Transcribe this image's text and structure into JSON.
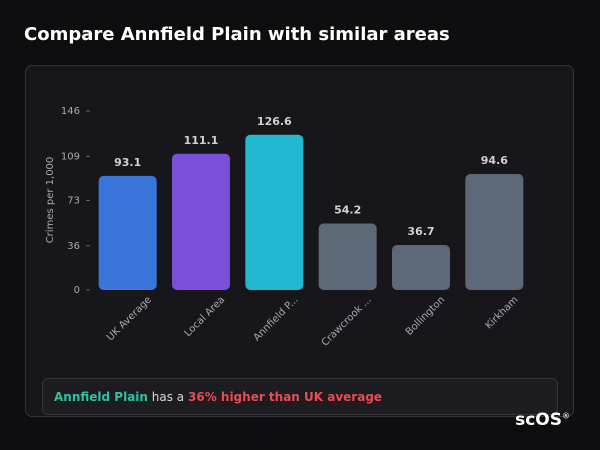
{
  "chart_data": {
    "type": "bar",
    "title": "Compare Annfield Plain with similar areas",
    "y_label": "Crimes per 1,000",
    "categories": [
      "UK Average",
      "Local Area",
      "Annfield P...",
      "Crawcrook ...",
      "Bollington",
      "Kirkham"
    ],
    "values": [
      93.1,
      111.1,
      126.6,
      54.2,
      36.7,
      94.6
    ],
    "colors": [
      "#3a76d9",
      "#7b4fd8",
      "#22b8cf",
      "#5d6878",
      "#5d6878",
      "#5d6878"
    ],
    "ylim": [
      0,
      146
    ],
    "yticks": [
      0,
      36,
      73,
      109,
      146
    ],
    "grid": false
  },
  "footer": {
    "area": "Annfield Plain",
    "text": "has a",
    "highlight": "36% higher than UK average"
  },
  "logo": {
    "text": "scOS",
    "mark": "®"
  }
}
